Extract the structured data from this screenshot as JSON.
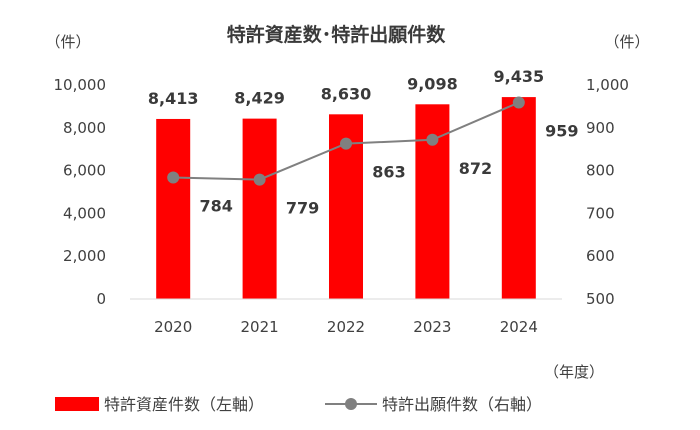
{
  "chart_data": {
    "type": "bar",
    "title": "特許資産数･特許出願件数",
    "categories": [
      "2020",
      "2021",
      "2022",
      "2023",
      "2024"
    ],
    "series": [
      {
        "name": "特許資産件数（左軸）",
        "type": "bar",
        "axis": "left",
        "color": "#ff0000",
        "values": [
          8413,
          8429,
          8630,
          9098,
          9435
        ],
        "labels": [
          "8,413",
          "8,429",
          "8,630",
          "9,098",
          "9,435"
        ]
      },
      {
        "name": "特許出願件数（右軸）",
        "type": "line",
        "axis": "right",
        "color": "#808080",
        "values": [
          784,
          779,
          863,
          872,
          959
        ],
        "labels": [
          "784",
          "779",
          "863",
          "872",
          "959"
        ]
      }
    ],
    "y_left": {
      "unit": "（件）",
      "ylim": [
        0,
        10000
      ],
      "ticks": [
        "0",
        "2,000",
        "4,000",
        "6,000",
        "8,000",
        "10,000"
      ]
    },
    "y_right": {
      "unit": "（件）",
      "ylim": [
        500,
        1000
      ],
      "ticks": [
        "500",
        "600",
        "700",
        "800",
        "900",
        "1,000"
      ]
    },
    "x_unit": "（年度）",
    "legend": "bottom",
    "grid": false
  }
}
